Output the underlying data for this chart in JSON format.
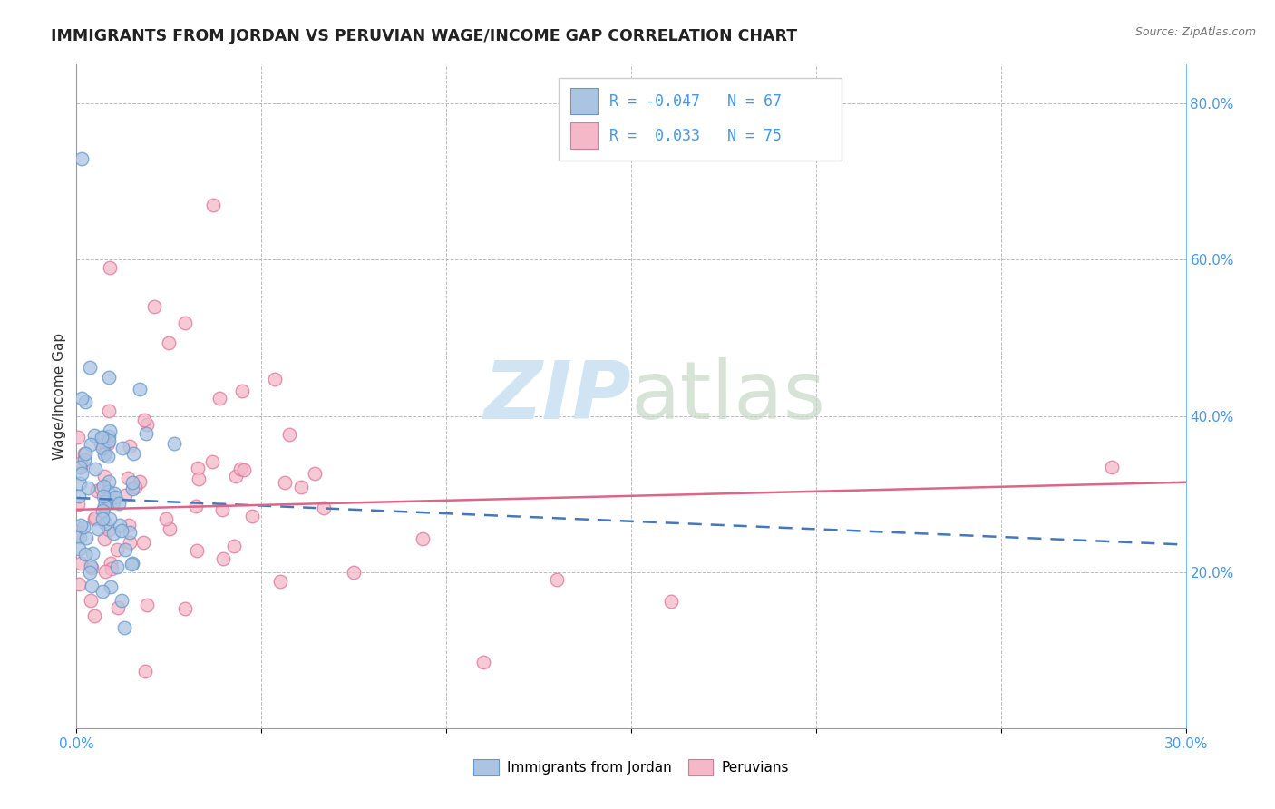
{
  "title": "IMMIGRANTS FROM JORDAN VS PERUVIAN WAGE/INCOME GAP CORRELATION CHART",
  "source": "Source: ZipAtlas.com",
  "ylabel": "Wage/Income Gap",
  "xlim": [
    0.0,
    0.3
  ],
  "ylim": [
    0.0,
    0.85
  ],
  "xtick_positions": [
    0.0,
    0.05,
    0.1,
    0.15,
    0.2,
    0.25,
    0.3
  ],
  "xtick_labels": [
    "0.0%",
    "",
    "",
    "",
    "",
    "",
    "30.0%"
  ],
  "ytick_right_positions": [
    0.2,
    0.4,
    0.6,
    0.8
  ],
  "ytick_right_labels": [
    "20.0%",
    "40.0%",
    "60.0%",
    "80.0%"
  ],
  "jordan_color": "#aac4e2",
  "jordan_edge": "#6699cc",
  "peruvian_color": "#f4b8c8",
  "peruvian_edge": "#dd7799",
  "trend_jordan_color": "#4477bb",
  "trend_peruvian_color": "#dd6688",
  "grid_color": "#bbbbbb",
  "tick_color": "#4499ee",
  "watermark_color": "#d0e4f4",
  "background_color": "#ffffff"
}
